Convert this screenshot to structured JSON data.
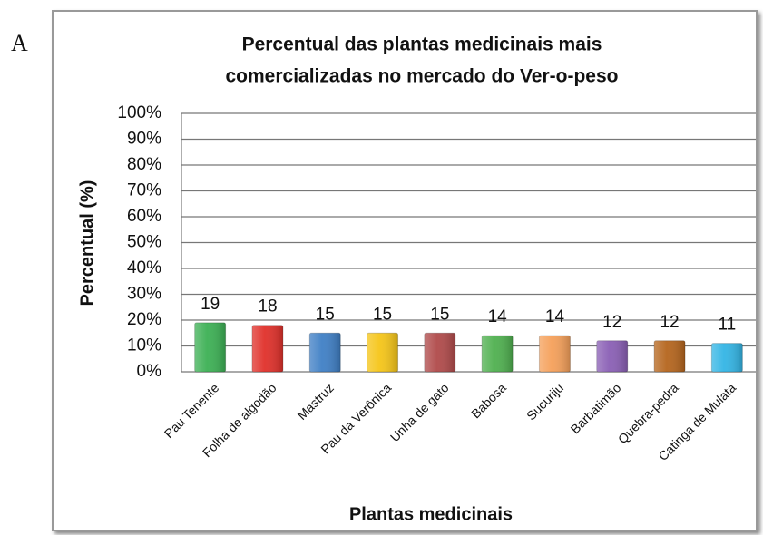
{
  "panel_label": "A",
  "chart_data": {
    "type": "bar",
    "title": [
      "Percentual das plantas medicinais mais",
      "comercializadas no mercado do Ver-o-peso"
    ],
    "x_label": "Plantas medicinais",
    "y_label": "Percentual (%)",
    "categories": [
      "Pau Tenente",
      "Folha de algodão",
      "Mastruz",
      "Pau da Verônica",
      "Unha de gato",
      "Babosa",
      "Sucuriju",
      "Barbatimão",
      "Quebra-pedra",
      "Catinga de Mulata"
    ],
    "values": [
      19,
      18,
      15,
      15,
      15,
      14,
      14,
      12,
      12,
      11
    ],
    "colors": [
      "#3cb054",
      "#e0302a",
      "#3f7fc5",
      "#f5c518",
      "#b04a4a",
      "#4fb04f",
      "#f5a05a",
      "#8a5fb5",
      "#b5651d",
      "#33b5e5"
    ],
    "ylim": [
      0,
      100
    ],
    "yticks": [
      {
        "value": 0,
        "label": "0%"
      },
      {
        "value": 10,
        "label": "10%"
      },
      {
        "value": 20,
        "label": "20%"
      },
      {
        "value": 30,
        "label": "30%"
      },
      {
        "value": 40,
        "label": "40%"
      },
      {
        "value": 50,
        "label": "50%"
      },
      {
        "value": 60,
        "label": "60%"
      },
      {
        "value": 70,
        "label": "70%"
      },
      {
        "value": 80,
        "label": "80%"
      },
      {
        "value": 90,
        "label": "90%"
      },
      {
        "value": 100,
        "label": "100%"
      }
    ],
    "grid": true
  }
}
